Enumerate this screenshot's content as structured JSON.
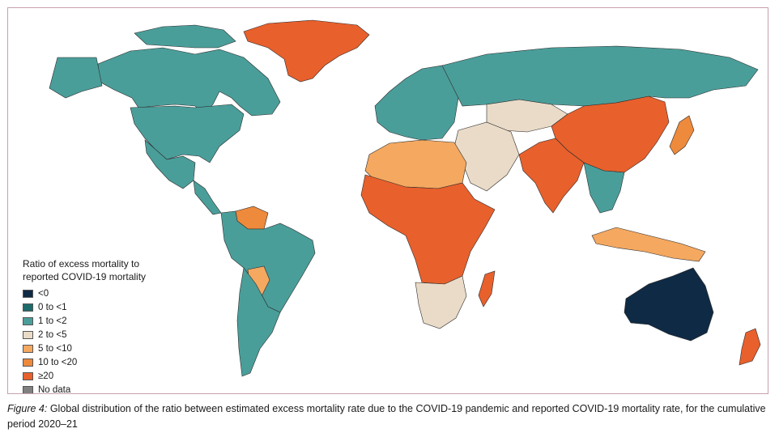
{
  "colors": {
    "lt0": "#0f2a44",
    "0to1": "#1d6b6b",
    "1to2": "#4a9e9a",
    "2to5": "#eadbc8",
    "5to10": "#f4a860",
    "10to20": "#ee8a3c",
    "ge20": "#e8602c",
    "nodata": "#808080",
    "border": "#2b2b2b"
  },
  "legend": {
    "title_line1": "Ratio of excess mortality to",
    "title_line2": "reported COVID-19 mortality",
    "items": [
      {
        "label": "<0",
        "color": "#0f2a44"
      },
      {
        "label": "0 to <1",
        "color": "#1d6b6b"
      },
      {
        "label": "1 to <2",
        "color": "#4a9e9a"
      },
      {
        "label": "2 to <5",
        "color": "#eadbc8"
      },
      {
        "label": "5 to <10",
        "color": "#f4a860"
      },
      {
        "label": "10 to <20",
        "color": "#ee8a3c"
      },
      {
        "label": "≥20",
        "color": "#e8602c"
      },
      {
        "label": "No data",
        "color": "#808080"
      }
    ]
  },
  "caption": {
    "figure_label": "Figure 4:",
    "text": "Global distribution of the ratio between estimated excess mortality rate due to the COVID-19 pandemic and reported COVID-19 mortality rate, for the cumulative period 2020–21"
  },
  "regions": [
    {
      "region": "Greenland",
      "category": "ge20"
    },
    {
      "region": "Canada",
      "category": "1to2"
    },
    {
      "region": "United States",
      "category": "1to2"
    },
    {
      "region": "Mexico",
      "category": "1to2"
    },
    {
      "region": "Central America",
      "category": "1to2"
    },
    {
      "region": "Venezuela",
      "category": "10to20"
    },
    {
      "region": "Brazil",
      "category": "1to2"
    },
    {
      "region": "Bolivia",
      "category": "5to10"
    },
    {
      "region": "Argentina",
      "category": "1to2"
    },
    {
      "region": "Western Europe",
      "category": "1to2"
    },
    {
      "region": "Russia",
      "category": "1to2"
    },
    {
      "region": "Kazakhstan",
      "category": "2to5"
    },
    {
      "region": "China",
      "category": "ge20"
    },
    {
      "region": "India",
      "category": "ge20"
    },
    {
      "region": "Middle East",
      "category": "2to5"
    },
    {
      "region": "North Africa",
      "category": "5to10"
    },
    {
      "region": "Sub-Saharan Africa",
      "category": "ge20"
    },
    {
      "region": "Southern Africa",
      "category": "2to5"
    },
    {
      "region": "Madagascar",
      "category": "ge20"
    },
    {
      "region": "Southeast Asia",
      "category": "1to2"
    },
    {
      "region": "Indonesia",
      "category": "5to10"
    },
    {
      "region": "Japan",
      "category": "10to20"
    },
    {
      "region": "Australia",
      "category": "lt0"
    },
    {
      "region": "New Zealand",
      "category": "ge20"
    }
  ]
}
